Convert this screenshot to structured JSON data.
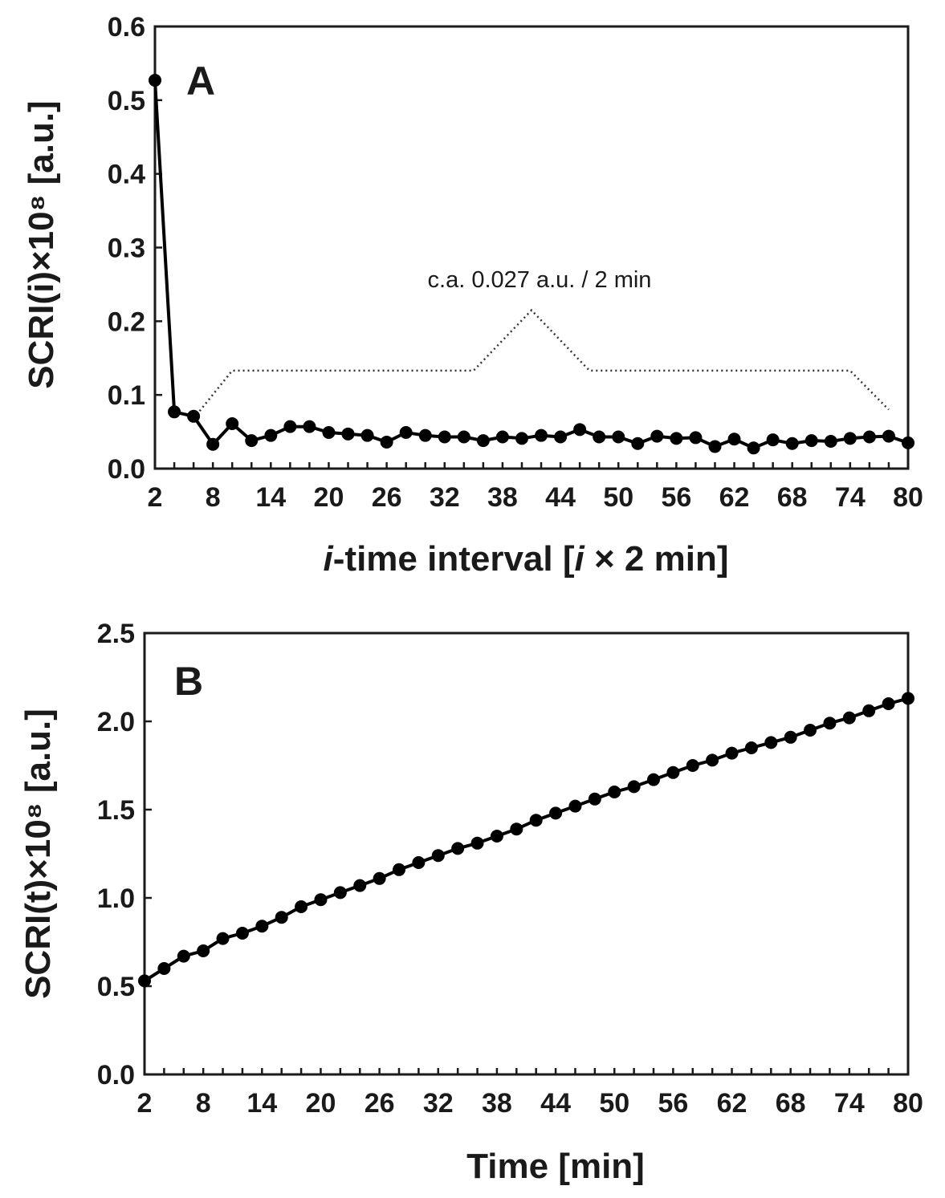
{
  "chart_data": [
    {
      "panel": "A",
      "type": "line",
      "panel_label": "A",
      "xlabel_italic": "i",
      "xlabel_mid": "-time interval [",
      "xlabel_italic2": "i",
      "xlabel_tail": " × 2 min]",
      "ylabel": "SCRI(i)×10⁸ [a.u.]",
      "xlim": [
        2,
        80
      ],
      "ylim": [
        0,
        0.6
      ],
      "xticks": [
        2,
        8,
        14,
        20,
        26,
        32,
        38,
        44,
        50,
        56,
        62,
        68,
        74,
        80
      ],
      "yticks": [
        "0.0",
        "0.1",
        "0.2",
        "0.3",
        "0.4",
        "0.5",
        "0.6"
      ],
      "annotation": "c.a. 0.027 a.u. / 2 min",
      "series": [
        {
          "name": "SCRI(i)",
          "x": [
            2,
            4,
            6,
            8,
            10,
            12,
            14,
            16,
            18,
            20,
            22,
            24,
            26,
            28,
            30,
            32,
            34,
            36,
            38,
            40,
            42,
            44,
            46,
            48,
            50,
            52,
            54,
            56,
            58,
            60,
            62,
            64,
            66,
            68,
            70,
            72,
            74,
            76,
            78,
            80
          ],
          "y": [
            0.527,
            0.077,
            0.071,
            0.033,
            0.061,
            0.038,
            0.045,
            0.057,
            0.057,
            0.049,
            0.047,
            0.045,
            0.036,
            0.049,
            0.045,
            0.043,
            0.043,
            0.038,
            0.043,
            0.041,
            0.045,
            0.043,
            0.053,
            0.043,
            0.043,
            0.034,
            0.044,
            0.041,
            0.042,
            0.03,
            0.04,
            0.028,
            0.039,
            0.034,
            0.038,
            0.037,
            0.041,
            0.043,
            0.044,
            0.035
          ]
        }
      ]
    },
    {
      "panel": "B",
      "type": "line",
      "panel_label": "B",
      "xlabel": "Time [min]",
      "ylabel": "SCRI(t)×10⁸ [a.u.]",
      "xlim": [
        2,
        80
      ],
      "ylim": [
        0,
        2.5
      ],
      "xticks": [
        2,
        8,
        14,
        20,
        26,
        32,
        38,
        44,
        50,
        56,
        62,
        68,
        74,
        80
      ],
      "yticks": [
        "0.0",
        "0.5",
        "1.0",
        "1.5",
        "2.0",
        "2.5"
      ],
      "series": [
        {
          "name": "SCRI(t)",
          "x": [
            2,
            4,
            6,
            8,
            10,
            12,
            14,
            16,
            18,
            20,
            22,
            24,
            26,
            28,
            30,
            32,
            34,
            36,
            38,
            40,
            42,
            44,
            46,
            48,
            50,
            52,
            54,
            56,
            58,
            60,
            62,
            64,
            66,
            68,
            70,
            72,
            74,
            76,
            78,
            80
          ],
          "y": [
            0.53,
            0.6,
            0.67,
            0.7,
            0.77,
            0.8,
            0.84,
            0.89,
            0.95,
            0.99,
            1.03,
            1.07,
            1.11,
            1.16,
            1.2,
            1.24,
            1.28,
            1.31,
            1.35,
            1.39,
            1.44,
            1.48,
            1.52,
            1.56,
            1.6,
            1.63,
            1.67,
            1.71,
            1.75,
            1.78,
            1.82,
            1.85,
            1.88,
            1.91,
            1.95,
            1.99,
            2.02,
            2.06,
            2.1,
            2.13
          ]
        }
      ]
    }
  ]
}
